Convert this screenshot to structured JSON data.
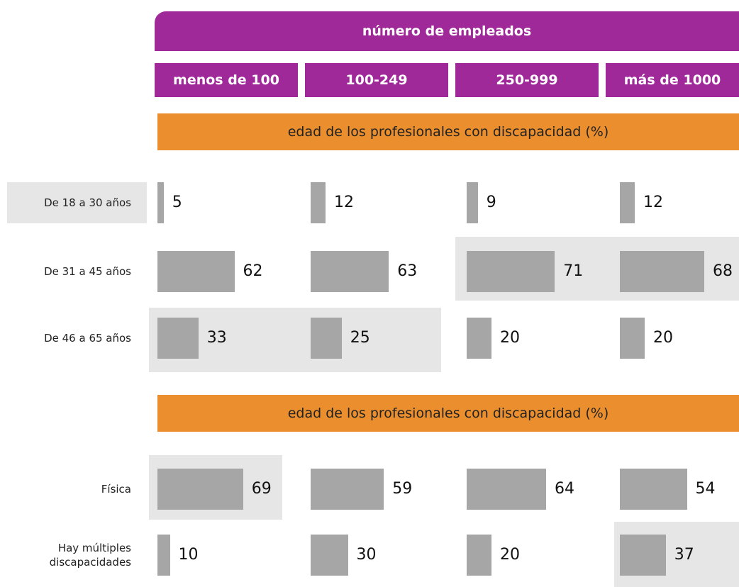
{
  "header": {
    "title": "número de empleados",
    "columns": [
      "menos de 100",
      "100-249",
      "250-999",
      "más de 1000"
    ]
  },
  "sections": [
    {
      "title": "edad de los profesionales con discapacidad (%)",
      "rows": [
        {
          "label": "De 18 a 30 años",
          "values": [
            5,
            12,
            9,
            12
          ]
        },
        {
          "label": "De 31 a 45 años",
          "values": [
            62,
            63,
            71,
            68
          ]
        },
        {
          "label": "De 46 a 65 años",
          "values": [
            33,
            25,
            20,
            20
          ]
        }
      ]
    },
    {
      "title": "edad de los profesionales con discapacidad (%)",
      "rows": [
        {
          "label": "Física",
          "values": [
            69,
            59,
            64,
            54
          ]
        },
        {
          "label": "Hay múltiples discapacidades",
          "values": [
            10,
            30,
            20,
            37
          ]
        }
      ]
    }
  ],
  "bar_color": "#a6a6a6",
  "header_color": "#a0299a",
  "section_color": "#eb8f2e"
}
